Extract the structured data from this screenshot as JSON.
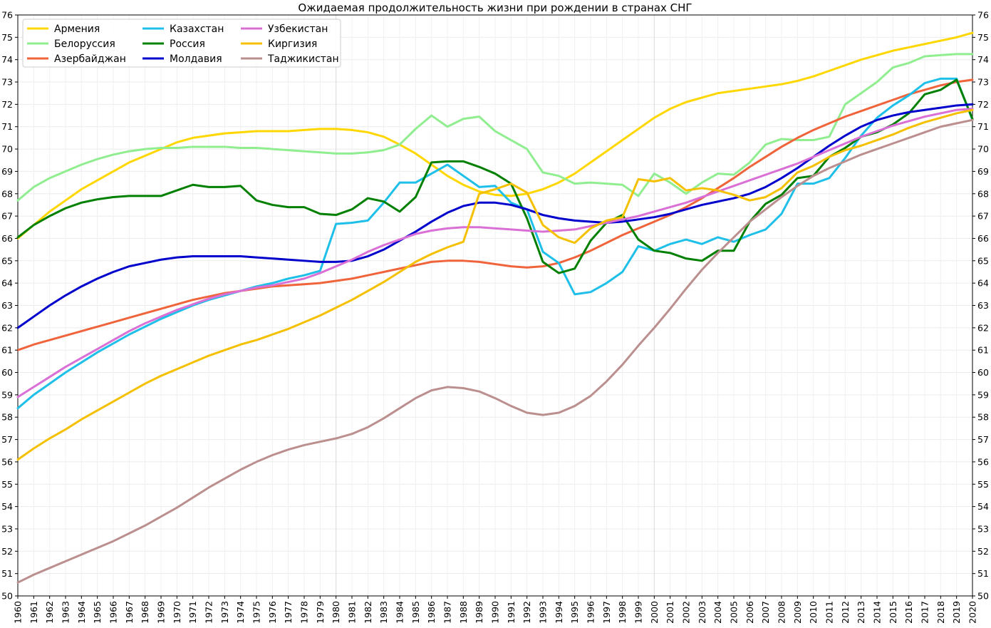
{
  "chart_data": {
    "type": "line",
    "title": "Ожидаемая продолжительность жизни при рождении в странах СНГ",
    "xlabel": "",
    "ylabel": "",
    "xlim": [
      1960,
      2020
    ],
    "ylim": [
      50,
      76
    ],
    "grid": true,
    "legend_position": "top-left",
    "x": [
      1960,
      1961,
      1962,
      1963,
      1964,
      1965,
      1966,
      1967,
      1968,
      1969,
      1970,
      1971,
      1972,
      1973,
      1974,
      1975,
      1976,
      1977,
      1978,
      1979,
      1980,
      1981,
      1982,
      1983,
      1984,
      1985,
      1986,
      1987,
      1988,
      1989,
      1990,
      1991,
      1992,
      1993,
      1994,
      1995,
      1996,
      1997,
      1998,
      1999,
      2000,
      2001,
      2002,
      2003,
      2004,
      2005,
      2006,
      2007,
      2008,
      2009,
      2010,
      2011,
      2012,
      2013,
      2014,
      2015,
      2016,
      2017,
      2018,
      2019,
      2020
    ],
    "x_tick_labels": [
      "1960",
      "1961",
      "1962",
      "1963",
      "1964",
      "1965",
      "1966",
      "1967",
      "1968",
      "1969",
      "1970",
      "1971",
      "1972",
      "1973",
      "1974",
      "1975",
      "1976",
      "1977",
      "1978",
      "1979",
      "1980",
      "1981",
      "1982",
      "1983",
      "1984",
      "1985",
      "1986",
      "1987",
      "1988",
      "1989",
      "1990",
      "1991",
      "1992",
      "1993",
      "1994",
      "1995",
      "1996",
      "1997",
      "1998",
      "1999",
      "2000",
      "2001",
      "2002",
      "2003",
      "2004",
      "2005",
      "2006",
      "2007",
      "2008",
      "2009",
      "2010",
      "2011",
      "2012",
      "2013",
      "2014",
      "2015",
      "2016",
      "2017",
      "2018",
      "2019",
      "2020"
    ],
    "y_tick_labels": [
      "50",
      "51",
      "52",
      "53",
      "54",
      "55",
      "56",
      "57",
      "58",
      "59",
      "60",
      "61",
      "62",
      "63",
      "64",
      "65",
      "66",
      "67",
      "68",
      "69",
      "70",
      "71",
      "72",
      "73",
      "74",
      "75",
      "76"
    ],
    "series": [
      {
        "name": "Армения",
        "color": "#ffd700",
        "values": [
          66.0,
          66.6,
          67.2,
          67.7,
          68.2,
          68.6,
          69.0,
          69.4,
          69.7,
          70.0,
          70.3,
          70.5,
          70.6,
          70.7,
          70.75,
          70.8,
          70.8,
          70.8,
          70.85,
          70.9,
          70.9,
          70.85,
          70.75,
          70.55,
          70.2,
          69.8,
          69.3,
          68.8,
          68.4,
          68.1,
          67.95,
          67.9,
          68.0,
          68.2,
          68.5,
          68.9,
          69.4,
          69.9,
          70.4,
          70.9,
          71.4,
          71.8,
          72.1,
          72.3,
          72.5,
          72.6,
          72.7,
          72.8,
          72.9,
          73.05,
          73.25,
          73.5,
          73.75,
          74.0,
          74.2,
          74.4,
          74.55,
          74.7,
          74.85,
          75.0,
          75.2
        ]
      },
      {
        "name": "Белоруссия",
        "color": "#90ee90",
        "values": [
          67.7,
          68.3,
          68.7,
          69.0,
          69.3,
          69.55,
          69.75,
          69.9,
          70.0,
          70.05,
          70.05,
          70.1,
          70.1,
          70.1,
          70.05,
          70.05,
          70.0,
          69.95,
          69.9,
          69.85,
          69.8,
          69.8,
          69.85,
          69.95,
          70.2,
          70.9,
          71.5,
          71.0,
          71.35,
          71.45,
          70.8,
          70.4,
          70.0,
          68.95,
          68.8,
          68.45,
          68.5,
          68.45,
          68.4,
          67.9,
          68.9,
          68.5,
          68.0,
          68.5,
          68.9,
          68.85,
          69.4,
          70.2,
          70.45,
          70.4,
          70.4,
          70.55,
          72.0,
          72.5,
          73.0,
          73.65,
          73.85,
          74.15,
          74.2,
          74.25,
          74.25
        ]
      },
      {
        "name": "Азербайджан",
        "color": "#f0643c",
        "values": [
          61.0,
          61.25,
          61.45,
          61.65,
          61.85,
          62.05,
          62.25,
          62.45,
          62.65,
          62.85,
          63.05,
          63.25,
          63.4,
          63.55,
          63.65,
          63.75,
          63.85,
          63.9,
          63.95,
          64.0,
          64.1,
          64.2,
          64.35,
          64.5,
          64.65,
          64.8,
          64.95,
          65.0,
          65.0,
          64.95,
          64.85,
          64.75,
          64.7,
          64.75,
          64.9,
          65.15,
          65.45,
          65.8,
          66.15,
          66.45,
          66.75,
          67.05,
          67.4,
          67.8,
          68.25,
          68.7,
          69.2,
          69.65,
          70.1,
          70.5,
          70.85,
          71.15,
          71.45,
          71.7,
          71.95,
          72.2,
          72.45,
          72.65,
          72.85,
          73.0,
          73.1
        ]
      },
      {
        "name": "Казахстан",
        "color": "#1ebfe8",
        "values": [
          58.4,
          59.0,
          59.5,
          60.0,
          60.45,
          60.9,
          61.3,
          61.7,
          62.05,
          62.4,
          62.7,
          63.0,
          63.25,
          63.45,
          63.65,
          63.85,
          64.0,
          64.2,
          64.35,
          64.55,
          66.65,
          66.7,
          66.8,
          67.6,
          68.5,
          68.5,
          68.9,
          69.3,
          68.8,
          68.3,
          68.35,
          67.6,
          67.3,
          65.4,
          64.9,
          63.5,
          63.6,
          64.0,
          64.5,
          65.65,
          65.45,
          65.75,
          65.95,
          65.75,
          66.05,
          65.85,
          66.15,
          66.4,
          67.1,
          68.45,
          68.45,
          68.7,
          69.6,
          70.6,
          71.4,
          71.95,
          72.4,
          72.95,
          73.15,
          73.15,
          71.3
        ]
      },
      {
        "name": "Россия",
        "color": "#008000",
        "values": [
          66.05,
          66.6,
          67.0,
          67.35,
          67.6,
          67.75,
          67.85,
          67.9,
          67.9,
          67.9,
          68.15,
          68.4,
          68.3,
          68.3,
          68.35,
          67.7,
          67.5,
          67.4,
          67.4,
          67.1,
          67.05,
          67.3,
          67.8,
          67.65,
          67.2,
          67.85,
          69.4,
          69.45,
          69.45,
          69.2,
          68.9,
          68.45,
          66.9,
          64.95,
          64.45,
          64.65,
          65.9,
          66.7,
          67.05,
          65.95,
          65.45,
          65.35,
          65.1,
          65.0,
          65.45,
          65.45,
          66.75,
          67.55,
          67.95,
          68.7,
          68.8,
          69.65,
          70.05,
          70.55,
          70.75,
          71.1,
          71.6,
          72.45,
          72.65,
          73.1,
          71.35
        ]
      },
      {
        "name": "Молдавия",
        "color": "#0000cd",
        "values": [
          62.0,
          62.5,
          63.0,
          63.45,
          63.85,
          64.2,
          64.5,
          64.75,
          64.9,
          65.05,
          65.15,
          65.2,
          65.2,
          65.2,
          65.2,
          65.15,
          65.1,
          65.05,
          65.0,
          64.95,
          64.95,
          65.0,
          65.2,
          65.5,
          65.9,
          66.3,
          66.75,
          67.15,
          67.45,
          67.6,
          67.6,
          67.5,
          67.3,
          67.05,
          66.9,
          66.8,
          66.75,
          66.7,
          66.75,
          66.85,
          66.95,
          67.1,
          67.3,
          67.5,
          67.65,
          67.8,
          68.0,
          68.3,
          68.7,
          69.15,
          69.65,
          70.15,
          70.6,
          71.0,
          71.3,
          71.5,
          71.65,
          71.75,
          71.85,
          71.95,
          72.0
        ]
      },
      {
        "name": "Узбекистан",
        "color": "#da70d6",
        "values": [
          58.9,
          59.35,
          59.8,
          60.25,
          60.65,
          61.05,
          61.45,
          61.85,
          62.2,
          62.5,
          62.8,
          63.05,
          63.3,
          63.5,
          63.65,
          63.8,
          63.9,
          64.05,
          64.2,
          64.45,
          64.75,
          65.05,
          65.4,
          65.7,
          65.95,
          66.2,
          66.35,
          66.45,
          66.5,
          66.5,
          66.45,
          66.4,
          66.35,
          66.3,
          66.35,
          66.4,
          66.55,
          66.7,
          66.85,
          67.0,
          67.2,
          67.4,
          67.6,
          67.85,
          68.1,
          68.35,
          68.6,
          68.85,
          69.1,
          69.35,
          69.65,
          69.95,
          70.25,
          70.55,
          70.8,
          71.05,
          71.25,
          71.45,
          71.6,
          71.75,
          71.8
        ]
      },
      {
        "name": "Киргизия",
        "color": "#f5c000",
        "values": [
          56.1,
          56.6,
          57.05,
          57.45,
          57.9,
          58.3,
          58.7,
          59.1,
          59.5,
          59.85,
          60.15,
          60.45,
          60.75,
          61.0,
          61.25,
          61.45,
          61.7,
          61.95,
          62.25,
          62.55,
          62.9,
          63.25,
          63.65,
          64.05,
          64.5,
          64.95,
          65.3,
          65.6,
          65.85,
          68.0,
          68.2,
          68.45,
          68.05,
          66.6,
          66.05,
          65.8,
          66.45,
          66.8,
          66.95,
          68.65,
          68.55,
          68.7,
          68.15,
          68.25,
          68.15,
          67.95,
          67.7,
          67.85,
          68.25,
          68.95,
          69.25,
          69.65,
          69.95,
          70.15,
          70.4,
          70.65,
          70.95,
          71.2,
          71.4,
          71.6,
          71.75
        ]
      },
      {
        "name": "Таджикистан",
        "color": "#bc8f8f",
        "values": [
          50.6,
          50.95,
          51.25,
          51.55,
          51.85,
          52.15,
          52.45,
          52.8,
          53.15,
          53.55,
          53.95,
          54.4,
          54.85,
          55.25,
          55.65,
          56.0,
          56.3,
          56.55,
          56.75,
          56.9,
          57.05,
          57.25,
          57.55,
          57.95,
          58.4,
          58.85,
          59.2,
          59.35,
          59.3,
          59.15,
          58.85,
          58.5,
          58.2,
          58.1,
          58.2,
          58.5,
          58.95,
          59.6,
          60.35,
          61.2,
          62.0,
          62.85,
          63.75,
          64.6,
          65.35,
          66.05,
          66.75,
          67.3,
          67.85,
          68.35,
          68.8,
          69.15,
          69.45,
          69.75,
          70.0,
          70.25,
          70.5,
          70.75,
          71.0,
          71.15,
          71.3
        ]
      }
    ]
  }
}
